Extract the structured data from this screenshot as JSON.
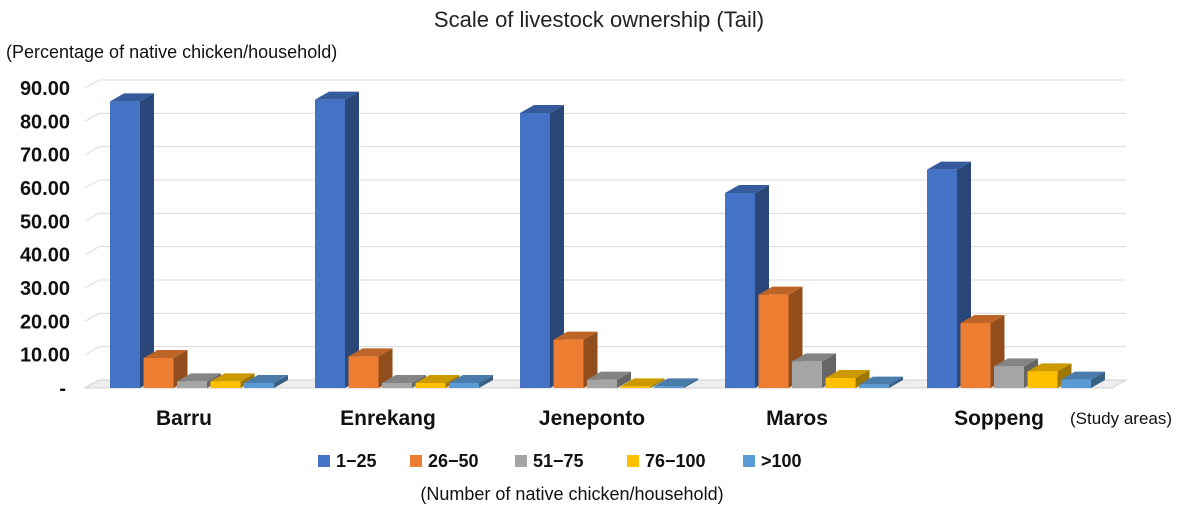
{
  "chart_data": {
    "type": "bar",
    "title": "Scale of livestock ownership (Tail)",
    "ylabel": "(Percentage of native chicken/household)",
    "xlabel": "(Number of native chicken/household)",
    "x_note": "(Study areas)",
    "categories": [
      "Barru",
      "Enrekang",
      "Jeneponto",
      "Maros",
      "Soppeng"
    ],
    "series": [
      {
        "name": "1−25",
        "color": "#4472C4",
        "values": [
          86.0,
          86.5,
          82.5,
          58.5,
          65.5
        ]
      },
      {
        "name": "26−50",
        "color": "#ED7D31",
        "values": [
          9.0,
          9.5,
          14.5,
          28.0,
          19.5
        ]
      },
      {
        "name": "51−75",
        "color": "#A5A5A5",
        "values": [
          2.0,
          1.5,
          2.5,
          8.0,
          6.5
        ]
      },
      {
        "name": "76−100",
        "color": "#FFC000",
        "values": [
          2.0,
          1.5,
          0.5,
          3.0,
          5.0
        ]
      },
      {
        "name": ">100",
        "color": "#5B9BD5",
        "values": [
          1.5,
          1.5,
          0.5,
          1.0,
          2.5
        ]
      }
    ],
    "y_ticks": [
      "-",
      "10.00",
      "20.00",
      "30.00",
      "40.00",
      "50.00",
      "60.00",
      "70.00",
      "80.00",
      "90.00"
    ],
    "ylim": [
      0,
      90
    ],
    "grid": true,
    "legend": "bottom",
    "style": "3d-clustered-bar"
  }
}
